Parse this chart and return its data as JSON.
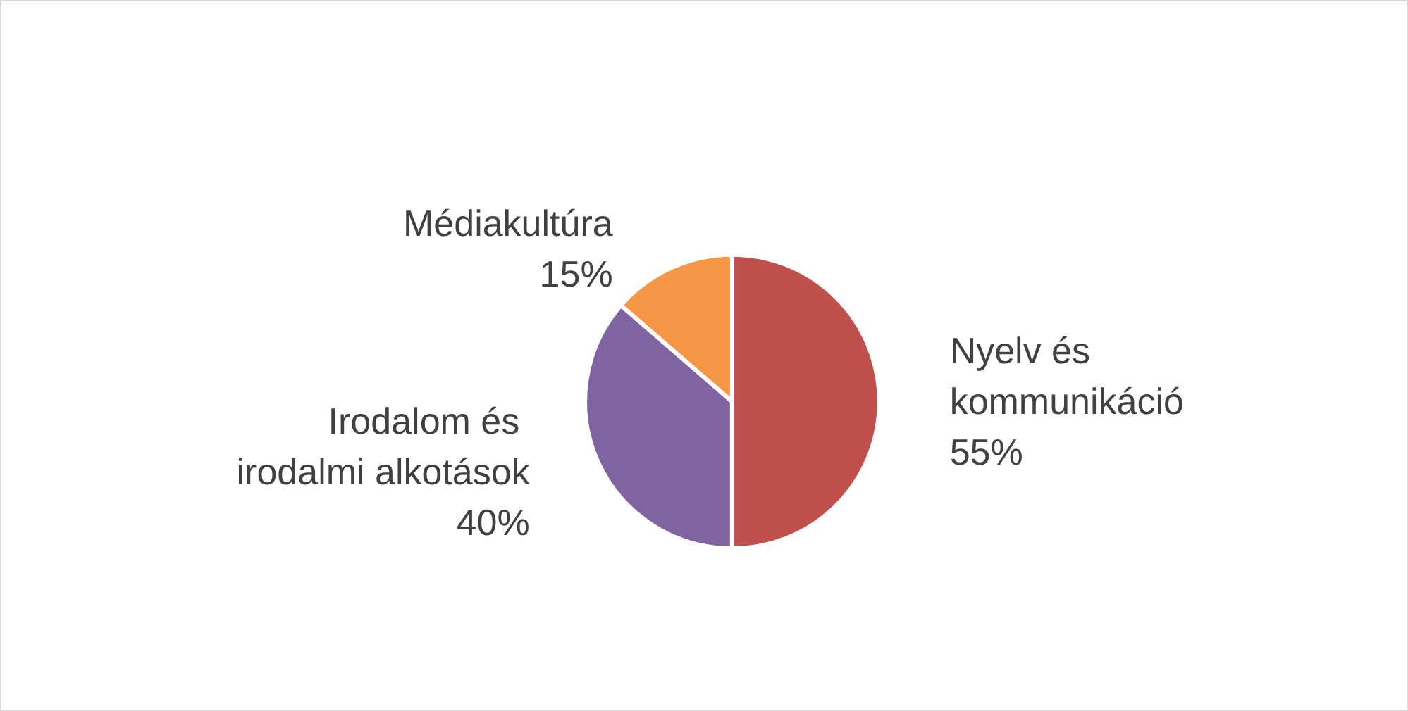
{
  "chart_data": {
    "type": "pie",
    "categories": [
      "Nyelv és kommunikáció",
      "Irodalom és irodalmi alkotások",
      "Médiakultúra"
    ],
    "values": [
      55,
      40,
      15
    ],
    "value_labels": [
      "55%",
      "40%",
      "15%"
    ],
    "colors": [
      "#c0504d",
      "#8064a2",
      "#f79646"
    ],
    "legend": false
  }
}
